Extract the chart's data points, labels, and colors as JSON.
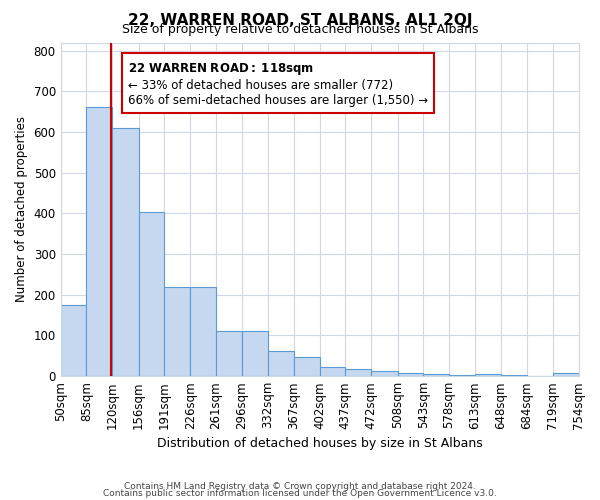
{
  "title": "22, WARREN ROAD, ST ALBANS, AL1 2QJ",
  "subtitle": "Size of property relative to detached houses in St Albans",
  "xlabel": "Distribution of detached houses by size in St Albans",
  "ylabel": "Number of detached properties",
  "bar_color": "#c5d8f0",
  "bar_edge_color": "#5b9bd5",
  "property_line_x": 118,
  "property_line_color": "#cc0000",
  "bin_edges": [
    50,
    85,
    120,
    156,
    191,
    226,
    261,
    296,
    332,
    367,
    402,
    437,
    472,
    508,
    543,
    578,
    613,
    648,
    684,
    719,
    754
  ],
  "bar_heights": [
    175,
    662,
    610,
    403,
    218,
    218,
    110,
    110,
    63,
    48,
    22,
    18,
    13,
    7,
    5,
    3,
    6,
    3,
    1,
    8
  ],
  "ylim": [
    0,
    820
  ],
  "yticks": [
    0,
    100,
    200,
    300,
    400,
    500,
    600,
    700,
    800
  ],
  "annotation_title": "22 WARREN ROAD: 118sqm",
  "annotation_line1": "← 33% of detached houses are smaller (772)",
  "annotation_line2": "66% of semi-detached houses are larger (1,550) →",
  "annotation_box_color": "#ffffff",
  "annotation_box_edge_color": "#cc0000",
  "footer1": "Contains HM Land Registry data © Crown copyright and database right 2024.",
  "footer2": "Contains public sector information licensed under the Open Government Licence v3.0.",
  "background_color": "#ffffff",
  "grid_color": "#d0d8e8"
}
